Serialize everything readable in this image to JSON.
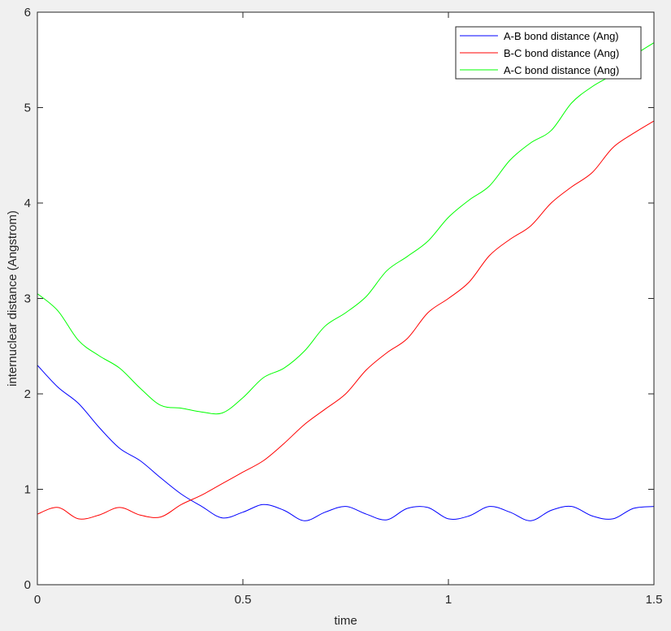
{
  "chart_data": {
    "type": "line",
    "title": "",
    "xlabel": "time",
    "ylabel": "internuclear distance (Angstrom)",
    "xlim": [
      0,
      1.5
    ],
    "ylim": [
      0,
      6
    ],
    "xticks": [
      0,
      0.5,
      1,
      1.5
    ],
    "xtick_labels": [
      "0",
      "0.5",
      "1",
      "1.5"
    ],
    "yticks": [
      0,
      1,
      2,
      3,
      4,
      5,
      6
    ],
    "ytick_labels": [
      "0",
      "1",
      "2",
      "3",
      "4",
      "5",
      "6"
    ],
    "grid": false,
    "legend_position": "top-right",
    "x": [
      0,
      0.05,
      0.1,
      0.15,
      0.2,
      0.25,
      0.3,
      0.35,
      0.4,
      0.45,
      0.5,
      0.55,
      0.6,
      0.65,
      0.7,
      0.75,
      0.8,
      0.85,
      0.9,
      0.95,
      1.0,
      1.05,
      1.1,
      1.15,
      1.2,
      1.25,
      1.3,
      1.35,
      1.4,
      1.45,
      1.5
    ],
    "series": [
      {
        "name": "A-B bond distance (Ang)",
        "color": "#0000ff",
        "values": [
          2.3,
          2.07,
          1.9,
          1.65,
          1.43,
          1.3,
          1.12,
          0.95,
          0.82,
          0.7,
          0.76,
          0.84,
          0.78,
          0.67,
          0.76,
          0.82,
          0.74,
          0.68,
          0.8,
          0.81,
          0.69,
          0.72,
          0.82,
          0.76,
          0.67,
          0.78,
          0.82,
          0.72,
          0.69,
          0.8,
          0.82
        ]
      },
      {
        "name": "B-C bond distance (Ang)",
        "color": "#ff0000",
        "values": [
          0.74,
          0.81,
          0.69,
          0.73,
          0.81,
          0.73,
          0.71,
          0.84,
          0.94,
          1.06,
          1.18,
          1.3,
          1.48,
          1.68,
          1.84,
          2.0,
          2.25,
          2.43,
          2.58,
          2.85,
          3.0,
          3.17,
          3.45,
          3.62,
          3.76,
          4.0,
          4.17,
          4.32,
          4.58,
          4.73,
          4.86
        ]
      },
      {
        "name": "A-C bond distance (Ang)",
        "color": "#00ff00",
        "values": [
          3.05,
          2.87,
          2.56,
          2.4,
          2.27,
          2.06,
          1.88,
          1.85,
          1.81,
          1.8,
          1.96,
          2.17,
          2.27,
          2.45,
          2.71,
          2.85,
          3.02,
          3.29,
          3.44,
          3.6,
          3.85,
          4.03,
          4.18,
          4.45,
          4.63,
          4.76,
          5.05,
          5.22,
          5.35,
          5.54,
          5.68
        ]
      }
    ]
  }
}
